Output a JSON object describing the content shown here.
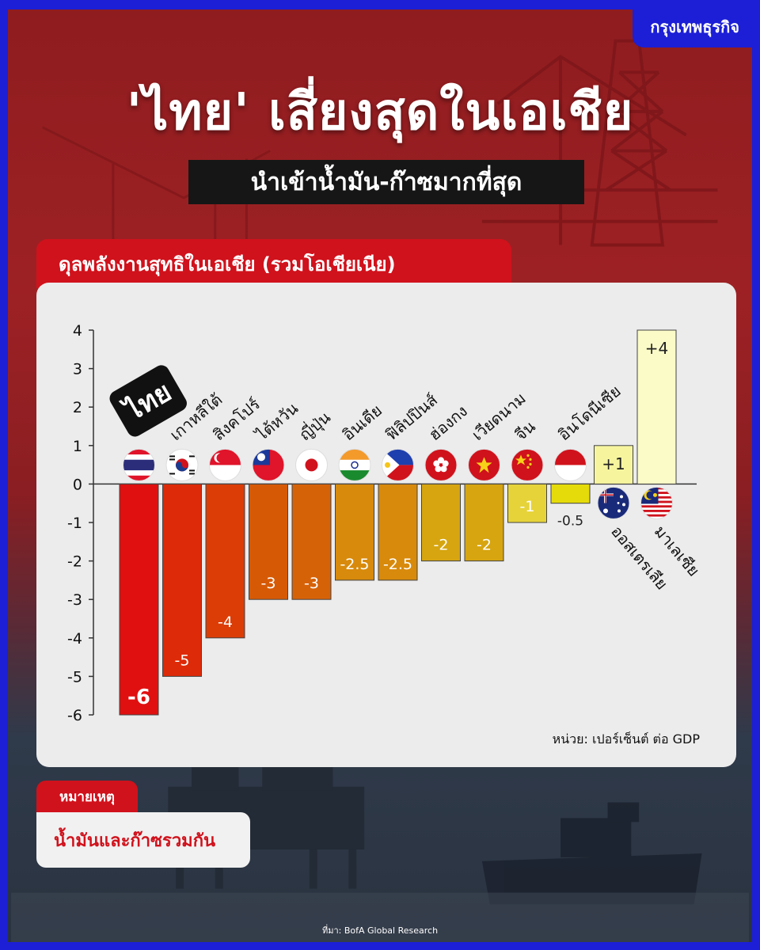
{
  "brand": "กรุงเทพธุรกิจ",
  "title": "'ไทย' เสี่ยงสุดในเอเชีย",
  "subtitle": "นำเข้าน้ำมัน-ก๊าซมากที่สุด",
  "chart_tab": "ดุลพลังงานสุทธิในเอเชีย (รวมโอเชียเนีย)",
  "unit": "หน่วย: เปอร์เซ็นต์ ต่อ GDP",
  "note_title": "หมายเหตุ",
  "note_text": "น้ำมันและก๊าซรวมกัน",
  "source": "ที่มา: BofA Global Research",
  "chart_data": {
    "type": "bar",
    "categories": [
      "ไทย",
      "เกาหลีใต้",
      "สิงคโปร์",
      "ไต้หวัน",
      "ญี่ปุ่น",
      "อินเดีย",
      "ฟิลิปปินส์",
      "ฮ่องกง",
      "เวียดนาม",
      "จีน",
      "อินโดนีเซีย",
      "ออสเตรเลีย",
      "มาเลเซีย"
    ],
    "values": [
      -6,
      -5,
      -4,
      -3,
      -3,
      -2.5,
      -2.5,
      -2,
      -2,
      -1,
      -0.5,
      1,
      4
    ],
    "value_labels": [
      "-6",
      "-5",
      "-4",
      "-3",
      "-3",
      "-2.5",
      "-2.5",
      "-2",
      "-2",
      "-1",
      "-0.5",
      "+1",
      "+4"
    ],
    "colors": [
      "#e01010",
      "#dd2a08",
      "#dc3d06",
      "#d65a06",
      "#d66208",
      "#d88a0c",
      "#d88a0c",
      "#d6a510",
      "#d6a510",
      "#e6d33a",
      "#e6db0a",
      "#f6f59e",
      "#fbfbc8"
    ],
    "flags": [
      "thailand-flag-icon",
      "south-korea-flag-icon",
      "singapore-flag-icon",
      "taiwan-flag-icon",
      "japan-flag-icon",
      "india-flag-icon",
      "philippines-flag-icon",
      "hong-kong-flag-icon",
      "vietnam-flag-icon",
      "china-flag-icon",
      "indonesia-flag-icon",
      "australia-flag-icon",
      "malaysia-flag-icon"
    ],
    "y_ticks": [
      4,
      3,
      2,
      1,
      0,
      -1,
      -2,
      -3,
      -4,
      -5,
      -6
    ],
    "ylim": [
      -6,
      4
    ]
  }
}
